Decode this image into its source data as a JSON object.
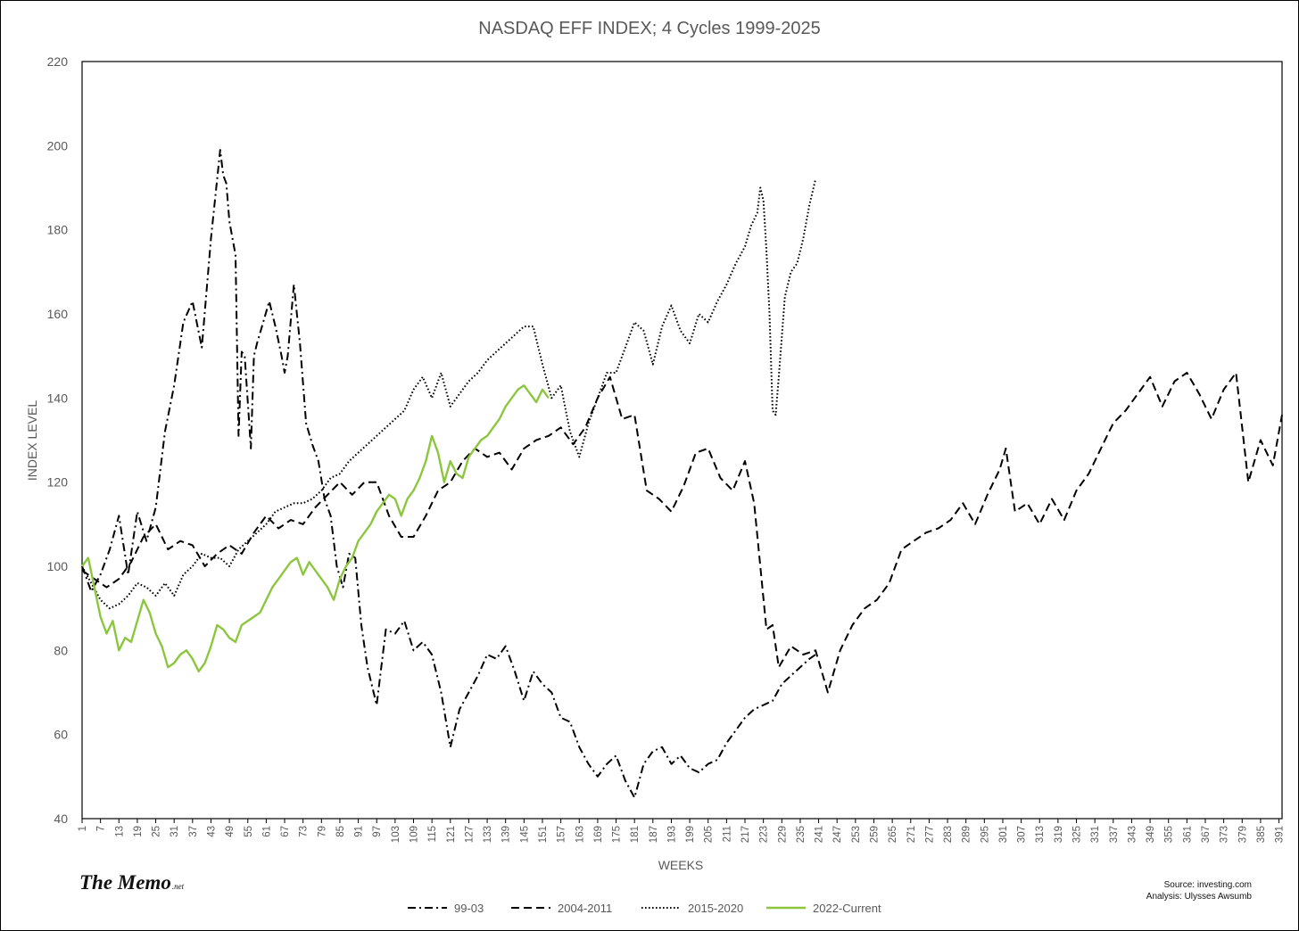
{
  "chart_data": {
    "type": "line",
    "title": "NASDAQ EFF INDEX; 4 Cycles 1999-2025",
    "xlabel": "WEEKS",
    "ylabel": "INDEX LEVEL",
    "ylim": [
      40,
      220
    ],
    "yticks": [
      "40",
      "60",
      "80",
      "100",
      "120",
      "140",
      "160",
      "180",
      "200",
      "220"
    ],
    "xlim": [
      1,
      392
    ],
    "xtick_start": 1,
    "xtick_step": 6,
    "xtick_end": 391,
    "grid": false,
    "legend_position": "bottom",
    "series": [
      {
        "name": "99-03",
        "style": "dash-dot",
        "color": "#000000",
        "x": [
          1,
          4,
          7,
          10,
          13,
          16,
          19,
          22,
          25,
          28,
          31,
          34,
          37,
          40,
          43,
          46,
          47,
          48,
          49,
          51,
          52,
          53,
          54,
          56,
          57,
          58,
          60,
          62,
          64,
          66,
          67,
          68,
          70,
          72,
          74,
          76,
          78,
          80,
          82,
          84,
          86,
          88,
          90,
          92,
          94,
          97,
          100,
          103,
          106,
          109,
          112,
          115,
          118,
          121,
          124,
          127,
          130,
          133,
          136,
          139,
          142,
          145,
          148,
          151,
          154,
          157,
          160,
          163,
          166,
          169,
          172,
          175,
          178,
          181,
          184,
          187,
          190,
          193,
          196,
          199,
          202,
          205,
          208,
          211,
          214,
          217,
          220,
          223,
          226,
          229,
          232,
          235,
          238,
          240
        ],
        "y": [
          100,
          94,
          98,
          104,
          112,
          98,
          113,
          106,
          114,
          132,
          143,
          158,
          163,
          152,
          178,
          199,
          193,
          191,
          182,
          174,
          131,
          151,
          150,
          128,
          150,
          153,
          158,
          163,
          157,
          150,
          146,
          150,
          167,
          153,
          134,
          129,
          125,
          116,
          112,
          100,
          95,
          103,
          102,
          86,
          76,
          67,
          85,
          84,
          87,
          80,
          82,
          79,
          70,
          57,
          66,
          70,
          74,
          79,
          78,
          81,
          75,
          68,
          75,
          72,
          70,
          64,
          63,
          57,
          53,
          50,
          53,
          55,
          49,
          45,
          53,
          56,
          57,
          53,
          55,
          52,
          51,
          53,
          54,
          58,
          61,
          64,
          66,
          67,
          68,
          72,
          74,
          76,
          78,
          79
        ]
      },
      {
        "name": "2004-2011",
        "style": "dashed",
        "color": "#000000",
        "x": [
          1,
          5,
          9,
          13,
          17,
          21,
          25,
          29,
          33,
          37,
          41,
          45,
          49,
          53,
          57,
          61,
          65,
          69,
          73,
          77,
          81,
          85,
          89,
          93,
          97,
          101,
          105,
          109,
          113,
          117,
          121,
          125,
          129,
          133,
          137,
          141,
          145,
          149,
          153,
          157,
          161,
          165,
          169,
          173,
          177,
          181,
          185,
          189,
          193,
          197,
          201,
          205,
          209,
          213,
          217,
          220,
          222,
          224,
          226,
          228,
          232,
          236,
          240,
          244,
          248,
          252,
          256,
          260,
          264,
          268,
          272,
          276,
          280,
          284,
          288,
          292,
          296,
          300,
          302,
          305,
          309,
          313,
          317,
          321,
          325,
          329,
          333,
          337,
          341,
          345,
          349,
          353,
          357,
          361,
          365,
          369,
          373,
          377,
          381,
          385,
          389,
          392
        ],
        "y": [
          99,
          97,
          95,
          97,
          101,
          107,
          110,
          104,
          106,
          105,
          100,
          103,
          105,
          103,
          108,
          112,
          109,
          111,
          110,
          114,
          117,
          120,
          117,
          120,
          120,
          112,
          107,
          107,
          112,
          118,
          120,
          125,
          128,
          126,
          127,
          123,
          128,
          130,
          131,
          133,
          129,
          133,
          140,
          145,
          135,
          136,
          118,
          116,
          113,
          119,
          127,
          128,
          121,
          118,
          125,
          115,
          100,
          85,
          86,
          76,
          81,
          79,
          80,
          70,
          80,
          86,
          90,
          92,
          96,
          104,
          106,
          108,
          109,
          111,
          115,
          110,
          117,
          123,
          128,
          113,
          115,
          110,
          116,
          111,
          118,
          122,
          128,
          134,
          137,
          141,
          145,
          138,
          144,
          146,
          141,
          135,
          142,
          146,
          120,
          130,
          124,
          136
        ]
      },
      {
        "name": "2015-2020",
        "style": "dotted",
        "color": "#000000",
        "x": [
          1,
          4,
          7,
          10,
          13,
          16,
          19,
          22,
          25,
          28,
          31,
          34,
          37,
          40,
          43,
          46,
          49,
          52,
          55,
          58,
          61,
          64,
          67,
          70,
          73,
          76,
          79,
          82,
          85,
          88,
          91,
          94,
          97,
          100,
          103,
          106,
          109,
          112,
          115,
          118,
          121,
          124,
          127,
          130,
          133,
          136,
          139,
          142,
          145,
          148,
          151,
          154,
          157,
          160,
          163,
          166,
          169,
          172,
          175,
          178,
          181,
          184,
          187,
          190,
          193,
          196,
          199,
          202,
          205,
          208,
          211,
          214,
          217,
          219,
          221,
          222,
          223,
          224,
          225,
          226,
          227,
          228,
          230,
          232,
          234,
          236,
          238,
          240
        ],
        "y": [
          100,
          96,
          92,
          90,
          91,
          93,
          96,
          95,
          93,
          96,
          93,
          98,
          100,
          103,
          102,
          102,
          100,
          104,
          106,
          108,
          110,
          113,
          114,
          115,
          115,
          116,
          118,
          121,
          122,
          125,
          127,
          129,
          131,
          133,
          135,
          137,
          142,
          145,
          140,
          146,
          138,
          141,
          144,
          146,
          149,
          151,
          153,
          155,
          157,
          157,
          148,
          140,
          143,
          132,
          126,
          134,
          140,
          146,
          146,
          152,
          158,
          156,
          148,
          157,
          162,
          156,
          153,
          160,
          158,
          163,
          167,
          172,
          176,
          181,
          184,
          190,
          187,
          175,
          160,
          137,
          136,
          145,
          164,
          170,
          172,
          178,
          186,
          192
        ]
      },
      {
        "name": "2022-Current",
        "style": "solid",
        "color": "#8cc63f",
        "x": [
          1,
          3,
          5,
          7,
          9,
          11,
          13,
          15,
          17,
          19,
          21,
          23,
          25,
          27,
          29,
          31,
          33,
          35,
          37,
          39,
          41,
          43,
          45,
          47,
          49,
          51,
          53,
          55,
          57,
          59,
          61,
          63,
          65,
          67,
          69,
          71,
          73,
          75,
          77,
          79,
          81,
          83,
          85,
          87,
          89,
          91,
          93,
          95,
          97,
          99,
          101,
          103,
          105,
          107,
          109,
          111,
          113,
          115,
          117,
          119,
          121,
          123,
          125,
          127,
          129,
          131,
          133,
          135,
          137,
          139,
          141,
          143,
          145,
          147,
          149,
          151,
          153
        ],
        "y": [
          100,
          102,
          95,
          88,
          84,
          87,
          80,
          83,
          82,
          87,
          92,
          89,
          84,
          81,
          76,
          77,
          79,
          80,
          78,
          75,
          77,
          81,
          86,
          85,
          83,
          82,
          86,
          87,
          88,
          89,
          92,
          95,
          97,
          99,
          101,
          102,
          98,
          101,
          99,
          97,
          95,
          92,
          97,
          100,
          102,
          106,
          108,
          110,
          113,
          115,
          117,
          116,
          112,
          116,
          118,
          121,
          125,
          131,
          127,
          120,
          125,
          122,
          121,
          126,
          128,
          130,
          131,
          133,
          135,
          138,
          140,
          142,
          143,
          141,
          139,
          142,
          140
        ]
      }
    ]
  },
  "branding": {
    "name": "The Memo",
    "suffix": ".net"
  },
  "source": {
    "line1": "Source: investing.com",
    "line2": "Analysis: Ulysses Awsumb"
  }
}
